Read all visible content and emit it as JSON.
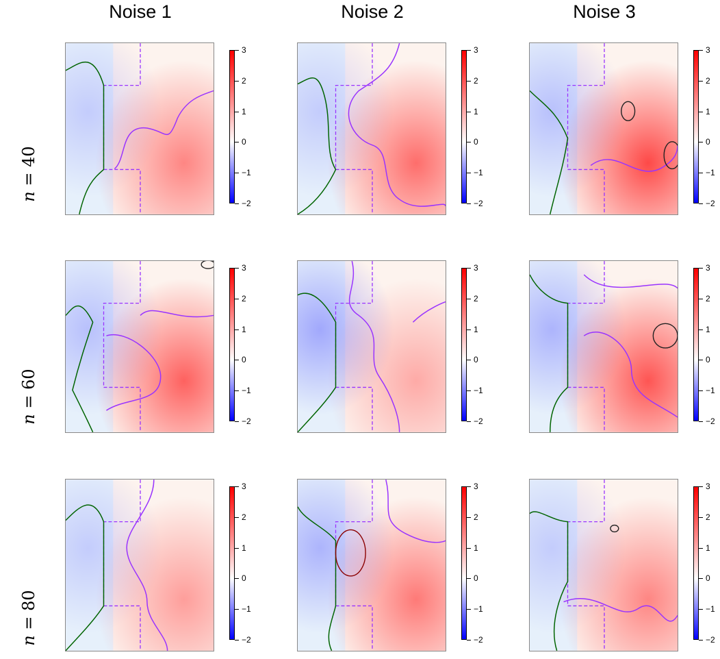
{
  "columns": [
    "Noise 1",
    "Noise 2",
    "Noise 3"
  ],
  "rows": [
    {
      "n": "n",
      "eq": " = ",
      "val": "40"
    },
    {
      "n": "n",
      "eq": " = ",
      "val": "60"
    },
    {
      "n": "n",
      "eq": " = ",
      "val": "80"
    }
  ],
  "colorbar": {
    "ticks": [
      "3",
      "2",
      "1",
      "0",
      "−1",
      "−2"
    ],
    "low_color": "#0000ff",
    "mid_color": "#ffffff",
    "high_color": "#ff0000"
  },
  "contour_colors": {
    "true_region": "#9933ff",
    "lower": "#006400",
    "upper": "#8b0000"
  },
  "panels": [
    {
      "row": 0,
      "col": 0,
      "red": 0.45,
      "blue": 0.15
    },
    {
      "row": 0,
      "col": 1,
      "red": 0.55,
      "blue": 0.15
    },
    {
      "row": 0,
      "col": 2,
      "red": 0.7,
      "blue": 0.2
    },
    {
      "row": 1,
      "col": 0,
      "red": 0.6,
      "blue": 0.2
    },
    {
      "row": 1,
      "col": 1,
      "red": 0.3,
      "blue": 0.3
    },
    {
      "row": 1,
      "col": 2,
      "red": 0.65,
      "blue": 0.25
    },
    {
      "row": 2,
      "col": 0,
      "red": 0.35,
      "blue": 0.15
    },
    {
      "row": 2,
      "col": 1,
      "red": 0.5,
      "blue": 0.25
    },
    {
      "row": 2,
      "col": 2,
      "red": 0.45,
      "blue": 0.15
    }
  ]
}
